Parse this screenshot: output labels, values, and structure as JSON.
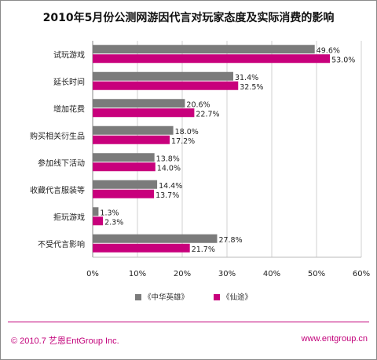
{
  "footer": {
    "left": "© 2010.7 艺恩EntGroup Inc.",
    "right": "www.entgroup.cn"
  },
  "colors": {
    "series_gray": "#7b7b7b",
    "series_magenta": "#c8007c",
    "footer_accent": "#c2007a"
  },
  "chart_data": {
    "type": "bar",
    "orientation": "horizontal",
    "title": "2010年5月份公测网游因代言对玩家态度及实际消费的影响",
    "categories": [
      "试玩游戏",
      "延长时间",
      "增加花费",
      "购买相关衍生品",
      "参加线下活动",
      "收藏代言服装等",
      "拒玩游戏",
      "不受代言影响"
    ],
    "series": [
      {
        "name": "《中华英雄》",
        "values": [
          49.6,
          31.4,
          20.6,
          18.0,
          13.8,
          14.4,
          1.3,
          27.8
        ],
        "labels": [
          "49.6%",
          "31.4%",
          "20.6%",
          "18.0%",
          "13.8%",
          "14.4%",
          "1.3%",
          "27.8%"
        ]
      },
      {
        "name": "《仙途》",
        "values": [
          53.0,
          32.5,
          22.7,
          17.2,
          14.0,
          13.7,
          2.3,
          21.7
        ],
        "labels": [
          "53.0%",
          "32.5%",
          "22.7%",
          "17.2%",
          "14.0%",
          "13.7%",
          "2.3%",
          "21.7%"
        ]
      }
    ],
    "xlim": [
      0,
      60
    ],
    "xticks": [
      "0%",
      "10%",
      "20%",
      "30%",
      "40%",
      "50%",
      "60%"
    ],
    "grid": true,
    "legend": "bottom"
  }
}
